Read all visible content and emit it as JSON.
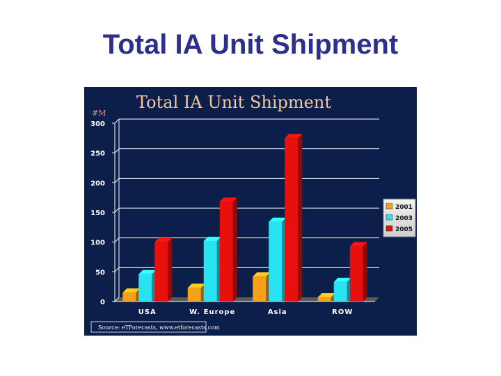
{
  "slide": {
    "title": "Total IA Unit Shipment"
  },
  "chart_data": {
    "type": "bar",
    "title": "Total IA Unit Shipment",
    "unit_label": "#M",
    "xlabel": "",
    "ylabel": "",
    "categories": [
      "USA",
      "W. Europe",
      "Asia",
      "ROW"
    ],
    "series": [
      {
        "name": "2001",
        "color": "#f5a21a",
        "values": [
          15,
          23,
          42,
          7
        ]
      },
      {
        "name": "2003",
        "color": "#29e3f3",
        "values": [
          46,
          102,
          134,
          33
        ]
      },
      {
        "name": "2005",
        "color": "#e8100c",
        "values": [
          100,
          168,
          275,
          93
        ]
      }
    ],
    "ylim": [
      0,
      300
    ],
    "yticks": [
      "0",
      "50",
      "100",
      "150",
      "200",
      "250",
      "300"
    ],
    "grid": true,
    "legend": "right",
    "source": "Source: eTForecasts, www.etforecasts.com"
  }
}
